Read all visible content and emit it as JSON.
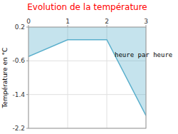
{
  "chart_data": {
    "type": "line",
    "title": "Evolution de la température",
    "ylabel": "Température en °C",
    "x": [
      0,
      1,
      2,
      3
    ],
    "values": [
      -0.5,
      -0.1,
      -0.1,
      -1.9
    ],
    "fill_top": 0.2,
    "color": "#5aafcc",
    "xlim": [
      0,
      3
    ],
    "ylim": [
      -2.2,
      0.2
    ],
    "xticks": [
      0,
      1,
      2,
      3
    ],
    "yticks": [
      0.2,
      -0.6,
      -1.4,
      -2.2
    ],
    "grid": true,
    "annotations": [
      {
        "text": "heure par heure",
        "x": 2.2,
        "y": -0.35
      }
    ]
  }
}
